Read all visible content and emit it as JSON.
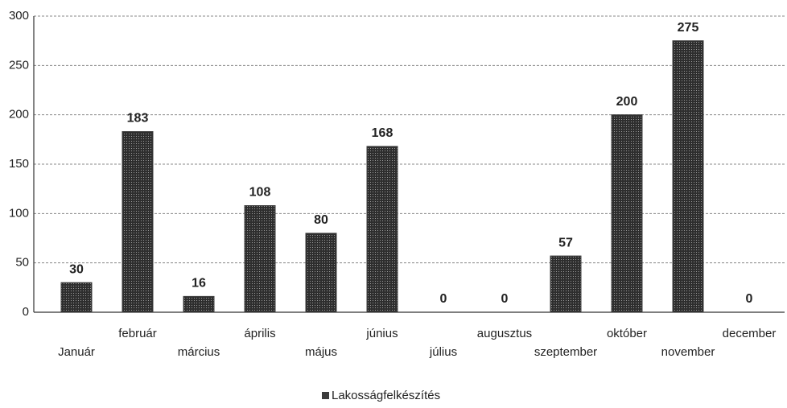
{
  "chart_data": {
    "type": "bar",
    "categories": [
      "Január",
      "február",
      "március",
      "április",
      "május",
      "június",
      "július",
      "augusztus",
      "szeptember",
      "október",
      "november",
      "december"
    ],
    "series": [
      {
        "name": "Lakosságfelkészítés",
        "color": "#3c3c3c",
        "values": [
          30,
          183,
          16,
          108,
          80,
          168,
          0,
          0,
          57,
          200,
          275,
          0
        ]
      }
    ],
    "ylim": [
      0,
      300
    ],
    "yticks": [
      0,
      50,
      100,
      150,
      200,
      250,
      300
    ],
    "grid": true,
    "legend": "bottom"
  }
}
